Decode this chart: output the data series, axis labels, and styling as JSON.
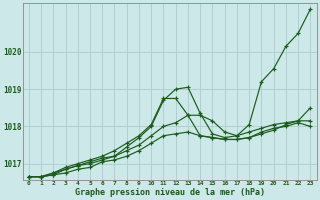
{
  "title": "",
  "xlabel": "Graphe pression niveau de la mer (hPa)",
  "ylabel": "",
  "bg_color": "#cce8e8",
  "line_color": "#1a5c1a",
  "grid_color": "#b0d0d0",
  "xlim": [
    -0.5,
    23.5
  ],
  "ylim": [
    1016.55,
    1021.3
  ],
  "yticks": [
    1017,
    1018,
    1019,
    1020
  ],
  "xticks": [
    0,
    1,
    2,
    3,
    4,
    5,
    6,
    7,
    8,
    9,
    10,
    11,
    12,
    13,
    14,
    15,
    16,
    17,
    18,
    19,
    20,
    21,
    22,
    23
  ],
  "series": [
    [
      1016.65,
      1016.65,
      1016.7,
      1016.75,
      1016.85,
      1016.9,
      1017.05,
      1017.1,
      1017.2,
      1017.35,
      1017.55,
      1017.75,
      1017.8,
      1017.85,
      1017.75,
      1017.7,
      1017.65,
      1017.65,
      1017.7,
      1017.8,
      1017.9,
      1018.05,
      1018.15,
      1018.5
    ],
    [
      1016.65,
      1016.65,
      1016.75,
      1016.85,
      1016.95,
      1017.0,
      1017.1,
      1017.2,
      1017.35,
      1017.5,
      1017.75,
      1018.0,
      1018.1,
      1018.3,
      1017.75,
      1017.7,
      1017.65,
      1017.65,
      1017.7,
      1017.85,
      1017.95,
      1018.0,
      1018.1,
      1018.0
    ],
    [
      1016.65,
      1016.65,
      1016.75,
      1016.9,
      1017.0,
      1017.1,
      1017.2,
      1017.35,
      1017.55,
      1017.75,
      1018.05,
      1018.75,
      1018.75,
      1018.3,
      1018.3,
      1018.15,
      1017.85,
      1017.75,
      1017.85,
      1017.95,
      1018.05,
      1018.1,
      1018.15,
      1018.15
    ],
    [
      1016.65,
      1016.65,
      1016.7,
      1016.85,
      1016.95,
      1017.05,
      1017.15,
      1017.2,
      1017.45,
      1017.7,
      1018.0,
      1018.7,
      1019.0,
      1019.05,
      1018.35,
      1017.8,
      1017.7,
      1017.75,
      1018.05,
      1019.2,
      1019.55,
      1020.15,
      1020.5,
      1021.15
    ]
  ]
}
